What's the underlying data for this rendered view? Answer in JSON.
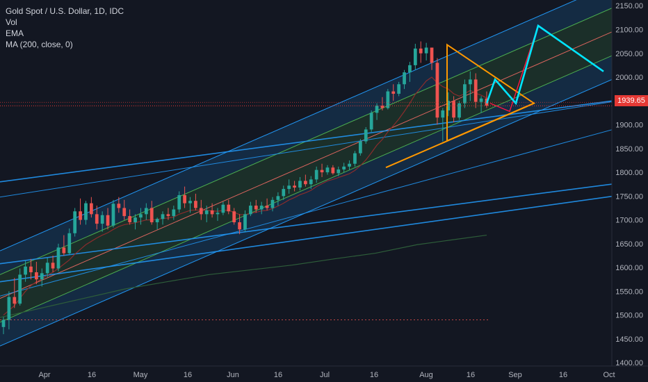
{
  "legend": {
    "title": "Gold Spot / U.S. Dollar, 1D, IDC",
    "vol": "Vol",
    "ema": "EMA",
    "ma": "MA (200, close, 0)"
  },
  "last_price": "1939.65",
  "colors": {
    "background": "#131722",
    "up": "#26a69a",
    "down": "#ef5350",
    "channel_outer": "#2196f3",
    "channel_inner": "#4caf50",
    "median": "#e0665f",
    "triangle": "#ff9800",
    "projection": "#00e5ff",
    "projection_alt": "#ff1744",
    "ema": "#8b2c2c",
    "ma200": "#2e5e3a",
    "price_line": "#e53935"
  },
  "chart_data": {
    "type": "candlestick",
    "title": "Gold Spot / U.S. Dollar, 1D, IDC",
    "x_ticks": [
      "Apr",
      "16",
      "May",
      "16",
      "Jun",
      "16",
      "Jul",
      "16",
      "Aug",
      "16",
      "Sep",
      "16",
      "Oct"
    ],
    "y_ticks": [
      2150,
      2100,
      2050,
      2000,
      1950,
      1900,
      1850,
      1800,
      1750,
      1700,
      1650,
      1600,
      1550,
      1500,
      1450,
      1400
    ],
    "ylim": [
      1393,
      2162
    ],
    "last_price": 1939.65,
    "candles_ohlc": [
      [
        1475,
        1496,
        1460,
        1490
      ],
      [
        1490,
        1550,
        1470,
        1538
      ],
      [
        1538,
        1578,
        1515,
        1524
      ],
      [
        1524,
        1598,
        1520,
        1585
      ],
      [
        1585,
        1615,
        1570,
        1602
      ],
      [
        1602,
        1618,
        1575,
        1590
      ],
      [
        1590,
        1612,
        1565,
        1575
      ],
      [
        1575,
        1598,
        1560,
        1588
      ],
      [
        1588,
        1620,
        1580,
        1610
      ],
      [
        1610,
        1625,
        1590,
        1598
      ],
      [
        1598,
        1650,
        1592,
        1642
      ],
      [
        1642,
        1668,
        1625,
        1630
      ],
      [
        1630,
        1682,
        1628,
        1672
      ],
      [
        1672,
        1725,
        1665,
        1718
      ],
      [
        1718,
        1745,
        1690,
        1700
      ],
      [
        1700,
        1740,
        1690,
        1735
      ],
      [
        1735,
        1748,
        1705,
        1712
      ],
      [
        1712,
        1730,
        1680,
        1692
      ],
      [
        1692,
        1718,
        1675,
        1710
      ],
      [
        1710,
        1725,
        1680,
        1688
      ],
      [
        1688,
        1742,
        1684,
        1734
      ],
      [
        1734,
        1748,
        1715,
        1725
      ],
      [
        1725,
        1742,
        1700,
        1708
      ],
      [
        1708,
        1722,
        1690,
        1695
      ],
      [
        1695,
        1712,
        1680,
        1705
      ],
      [
        1705,
        1725,
        1690,
        1712
      ],
      [
        1712,
        1735,
        1700,
        1725
      ],
      [
        1725,
        1740,
        1690,
        1695
      ],
      [
        1695,
        1705,
        1680,
        1702
      ],
      [
        1702,
        1718,
        1690,
        1712
      ],
      [
        1712,
        1725,
        1700,
        1708
      ],
      [
        1708,
        1730,
        1700,
        1722
      ],
      [
        1722,
        1760,
        1715,
        1752
      ],
      [
        1752,
        1770,
        1725,
        1735
      ],
      [
        1735,
        1748,
        1715,
        1740
      ],
      [
        1740,
        1755,
        1720,
        1725
      ],
      [
        1725,
        1742,
        1700,
        1712
      ],
      [
        1712,
        1730,
        1695,
        1720
      ],
      [
        1720,
        1735,
        1705,
        1712
      ],
      [
        1712,
        1725,
        1698,
        1715
      ],
      [
        1715,
        1738,
        1710,
        1732
      ],
      [
        1732,
        1742,
        1712,
        1718
      ],
      [
        1718,
        1725,
        1690,
        1695
      ],
      [
        1695,
        1712,
        1670,
        1680
      ],
      [
        1680,
        1720,
        1675,
        1712
      ],
      [
        1712,
        1738,
        1708,
        1730
      ],
      [
        1730,
        1742,
        1715,
        1722
      ],
      [
        1722,
        1738,
        1712,
        1730
      ],
      [
        1730,
        1745,
        1720,
        1725
      ],
      [
        1725,
        1748,
        1718,
        1742
      ],
      [
        1742,
        1758,
        1730,
        1750
      ],
      [
        1750,
        1772,
        1742,
        1765
      ],
      [
        1765,
        1785,
        1755,
        1772
      ],
      [
        1772,
        1782,
        1760,
        1768
      ],
      [
        1768,
        1790,
        1762,
        1782
      ],
      [
        1782,
        1795,
        1770,
        1775
      ],
      [
        1775,
        1792,
        1765,
        1785
      ],
      [
        1785,
        1812,
        1778,
        1805
      ],
      [
        1805,
        1818,
        1790,
        1800
      ],
      [
        1800,
        1815,
        1795,
        1810
      ],
      [
        1810,
        1815,
        1795,
        1798
      ],
      [
        1798,
        1812,
        1792,
        1806
      ],
      [
        1806,
        1820,
        1800,
        1812
      ],
      [
        1812,
        1825,
        1805,
        1818
      ],
      [
        1818,
        1845,
        1812,
        1840
      ],
      [
        1840,
        1870,
        1835,
        1865
      ],
      [
        1865,
        1895,
        1860,
        1890
      ],
      [
        1890,
        1930,
        1885,
        1925
      ],
      [
        1925,
        1945,
        1910,
        1940
      ],
      [
        1940,
        1958,
        1930,
        1935
      ],
      [
        1935,
        1975,
        1932,
        1970
      ],
      [
        1970,
        1985,
        1950,
        1965
      ],
      [
        1965,
        1990,
        1960,
        1985
      ],
      [
        1985,
        2015,
        1975,
        2010
      ],
      [
        2010,
        2032,
        1990,
        2025
      ],
      [
        2025,
        2070,
        2015,
        2060
      ],
      [
        2060,
        2075,
        2030,
        2050
      ],
      [
        2050,
        2072,
        2035,
        2062
      ],
      [
        2062,
        2058,
        2015,
        2030
      ],
      [
        2030,
        2040,
        1900,
        1915
      ],
      [
        1915,
        1935,
        1865,
        1930
      ],
      [
        1930,
        1968,
        1918,
        1950
      ],
      [
        1950,
        1960,
        1905,
        1915
      ],
      [
        1915,
        1950,
        1910,
        1945
      ],
      [
        1945,
        1995,
        1935,
        1985
      ],
      [
        1985,
        2012,
        1950,
        1995
      ],
      [
        1995,
        2008,
        1935,
        1948
      ],
      [
        1948,
        1960,
        1925,
        1955
      ],
      [
        1955,
        1970,
        1935,
        1940
      ]
    ],
    "ema_close": [
      1500,
      1510,
      1520,
      1535,
      1550,
      1562,
      1570,
      1576,
      1584,
      1590,
      1598,
      1607,
      1616,
      1628,
      1638,
      1648,
      1655,
      1662,
      1668,
      1673,
      1680,
      1686,
      1690,
      1692,
      1694,
      1697,
      1700,
      1700,
      1701,
      1703,
      1704,
      1706,
      1712,
      1716,
      1720,
      1721,
      1720,
      1720,
      1719,
      1718,
      1720,
      1720,
      1716,
      1711,
      1711,
      1714,
      1716,
      1719,
      1720,
      1724,
      1729,
      1735,
      1742,
      1747,
      1753,
      1757,
      1762,
      1770,
      1776,
      1782,
      1785,
      1789,
      1793,
      1797,
      1804,
      1814,
      1826,
      1841,
      1857,
      1869,
      1885,
      1898,
      1912,
      1928,
      1945,
      1964,
      1978,
      1992,
      2000,
      1988,
      1980,
      1975,
      1965,
      1960,
      1965,
      1972,
      1966,
      1962,
      1956
    ],
    "ma200_points": [
      [
        0,
        1495
      ],
      [
        60,
        1515
      ],
      [
        120,
        1535
      ],
      [
        180,
        1555
      ],
      [
        240,
        1570
      ],
      [
        300,
        1585
      ],
      [
        360,
        1595
      ],
      [
        420,
        1605
      ],
      [
        480,
        1618
      ],
      [
        540,
        1630
      ],
      [
        600,
        1648
      ],
      [
        650,
        1658
      ],
      [
        700,
        1668
      ]
    ],
    "annotations": {
      "channel": {
        "x0": 0,
        "x1": 932,
        "center_y0": 1535,
        "center_y1": 2128,
        "upper_offset": 100,
        "inner_offset": 50
      },
      "triangle": {
        "apex_x": 768,
        "apex_price": 1945,
        "top_x": 643,
        "top_price": 2068,
        "bottom_x": 643,
        "bottom_price": 1866,
        "base_left_x": 555,
        "base_left_price": 1810
      },
      "projection_cyan": [
        [
          700,
          1945
        ],
        [
          712,
          1995
        ],
        [
          742,
          1945
        ],
        [
          774,
          2108
        ],
        [
          868,
          2012
        ]
      ],
      "projection_red": [
        [
          705,
          1945
        ],
        [
          733,
          1928
        ],
        [
          774,
          2108
        ]
      ],
      "trendlines": [
        [
          0,
          1748,
          932,
          1960
        ],
        [
          0,
          1540,
          932,
          1910
        ],
        [
          0,
          1608,
          932,
          1785
        ],
        [
          0,
          1570,
          932,
          1760
        ],
        [
          0,
          1780,
          880,
          1950
        ]
      ],
      "dashed_level": {
        "price": 1490,
        "x0": 0,
        "x1": 705
      }
    }
  }
}
